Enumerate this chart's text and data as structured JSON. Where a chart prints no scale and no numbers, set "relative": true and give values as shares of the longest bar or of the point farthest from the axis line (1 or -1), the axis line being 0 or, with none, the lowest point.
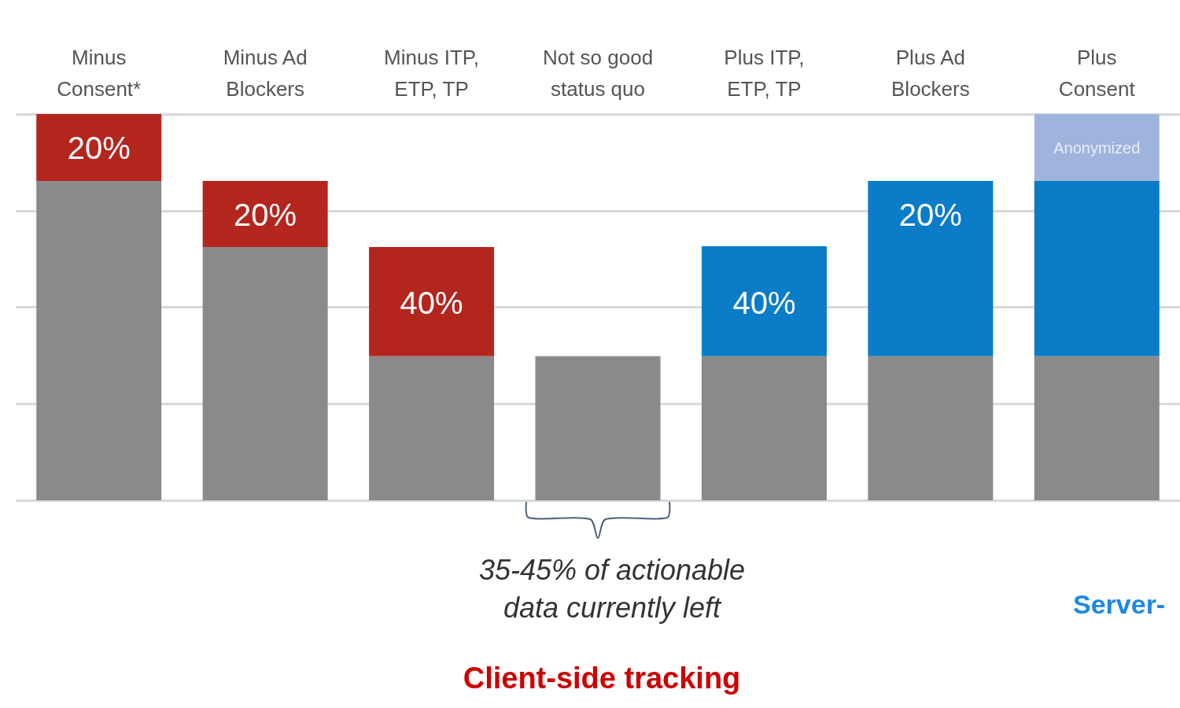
{
  "chart_data": {
    "type": "bar",
    "stacked": true,
    "relative": true,
    "grid": "y",
    "categories": [
      "Minus\nConsent*",
      "Minus Ad\nBlockers",
      "Minus ITP,\nETP, TP",
      "Not so good\nstatus quo",
      "Plus ITP,\nETP, TP",
      "Plus Ad\nBlockers",
      "Plus\nConsent"
    ],
    "series": [
      {
        "color": "#8a8a8a",
        "values": [
          0.827,
          0.656,
          0.373,
          0.373,
          0.373,
          0.373,
          0.373
        ]
      },
      {
        "color": "#b3261e",
        "values": [
          0.173,
          0.171,
          0.283,
          null,
          null,
          null,
          null
        ]
      },
      {
        "color": "#0a7cc8",
        "values": [
          null,
          null,
          null,
          null,
          0.285,
          0.454,
          0.454
        ]
      },
      {
        "color": "#9fb4dc",
        "values": [
          null,
          null,
          null,
          null,
          null,
          null,
          0.173
        ]
      }
    ],
    "annotations": [
      "20%",
      "20%",
      "40%",
      "40%",
      "20%",
      "Anonymized",
      "35-45% of actionable\ndata currently left",
      "Client-side tracking",
      "Server-"
    ]
  }
}
